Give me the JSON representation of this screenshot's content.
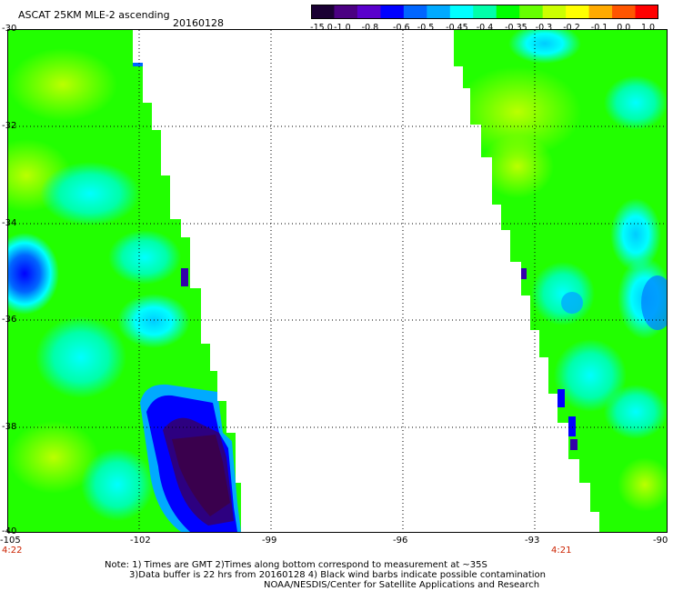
{
  "header": {
    "title": "ASCAT 25KM MLE-2 ascending",
    "date": "20160128"
  },
  "colorbar": {
    "labels": [
      "-15.0",
      "-1.0",
      "-0.8",
      "-0.6",
      "-0.5",
      "-0.45",
      "-0.4",
      "-0.35",
      "-0.3",
      "-0.2",
      "-0.1",
      "0.0",
      "1.0"
    ],
    "colors": [
      "#1a0033",
      "#4b0082",
      "#5a00cc",
      "#0000ff",
      "#0066ff",
      "#00aaff",
      "#00ffff",
      "#00ffaa",
      "#00ff00",
      "#66ff00",
      "#ccff00",
      "#ffff00",
      "#ffaa00",
      "#ff5500",
      "#ff0000"
    ]
  },
  "map": {
    "x_ticks": [
      "-105",
      "-102",
      "-99",
      "-96",
      "-93",
      "-90"
    ],
    "y_ticks": [
      "-30",
      "-32",
      "-34",
      "-36",
      "-38",
      "-40"
    ],
    "left_time": "4:22",
    "right_time": "4:21"
  },
  "notes": {
    "line1": "Note: 1) Times are GMT 2)Times along bottom correspond to measurement at ~35S",
    "line2": "3)Data buffer is 22 hrs from 20160128 4) Black wind barbs indicate possible contamination",
    "line3": "NOAA/NESDIS/Center for Satellite Applications and Research"
  }
}
